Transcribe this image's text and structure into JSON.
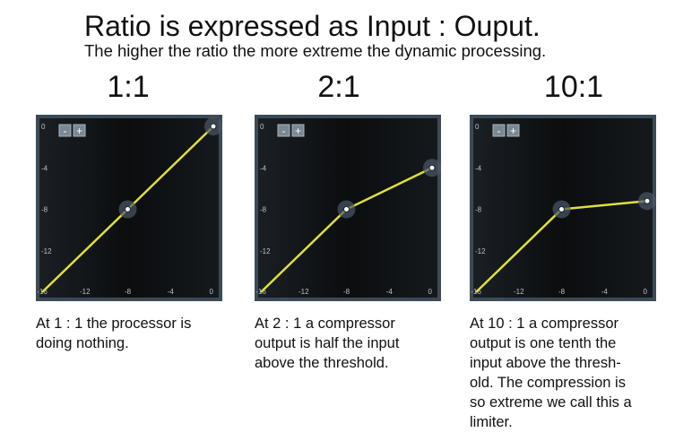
{
  "header": {
    "title": "Ratio is expressed as Input : Ouput.",
    "subtitle": "The higher the ratio the more extreme the dynamic processing."
  },
  "controls": [
    "-",
    "+"
  ],
  "chart_data": [
    {
      "type": "line",
      "title": "1:1",
      "x": [
        -16,
        -8,
        0
      ],
      "values": [
        -16,
        -8,
        0
      ],
      "color": "#dfe03a",
      "xlim": [
        -16,
        0
      ],
      "ylim": [
        -16,
        0
      ],
      "xticks": [
        -16,
        -12,
        -8,
        -4,
        0
      ],
      "yticks": [
        0,
        -4,
        -8,
        -12
      ],
      "caption": [
        "At 1 : 1 the processor is",
        "doing nothing."
      ]
    },
    {
      "type": "line",
      "title": "2:1",
      "x": [
        -16,
        -8,
        0
      ],
      "values": [
        -16,
        -8,
        -4
      ],
      "color": "#dfe03a",
      "xlim": [
        -16,
        0
      ],
      "ylim": [
        -16,
        0
      ],
      "xticks": [
        -16,
        -12,
        -8,
        -4,
        0
      ],
      "yticks": [
        0,
        -4,
        -8,
        -12
      ],
      "caption": [
        "At 2 : 1 a compressor",
        "output is half the input",
        "above the threshold."
      ]
    },
    {
      "type": "line",
      "title": "10:1",
      "x": [
        -16,
        -8,
        0
      ],
      "values": [
        -16,
        -8,
        -7.2
      ],
      "color": "#dfe03a",
      "xlim": [
        -16,
        0
      ],
      "ylim": [
        -16,
        0
      ],
      "xticks": [
        -16,
        -12,
        -8,
        -4,
        0
      ],
      "yticks": [
        0,
        -4,
        -8,
        -12
      ],
      "caption": [
        "At 10 : 1 a compressor",
        "output is one tenth the",
        "input above the thresh-",
        "old. The compression is",
        "so extreme we call this a",
        "limiter."
      ]
    }
  ]
}
